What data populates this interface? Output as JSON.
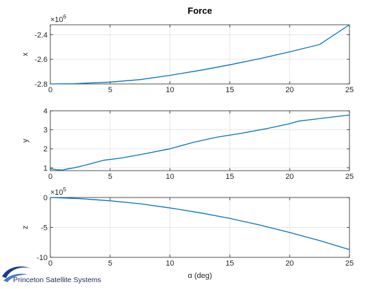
{
  "colors": {
    "series": "#0072bd",
    "grid": "#e6e6e6",
    "axis": "#262626",
    "logo": "#1a3a8a"
  },
  "logo": {
    "text": "Princeton Satellite Systems",
    "icon": "pss-swoosh-icon"
  },
  "chart_data": [
    {
      "type": "line",
      "title": "Force",
      "ylabel": "x",
      "xlabel": "",
      "exponent_label": "×10^6",
      "exponent": 6,
      "xlim": [
        0,
        25
      ],
      "ylim": [
        -2.8,
        -2.32
      ],
      "grid": true,
      "xticks": [
        "0",
        "5",
        "10",
        "15",
        "20",
        "25"
      ],
      "yticks": [
        "-2.8",
        "-2.6",
        "-2.4"
      ],
      "series": [
        {
          "x": [
            0,
            2,
            5,
            7.5,
            10,
            12.5,
            15,
            17.5,
            20,
            22.5,
            25
          ],
          "y": [
            -2.8,
            -2.798,
            -2.785,
            -2.765,
            -2.73,
            -2.69,
            -2.645,
            -2.595,
            -2.54,
            -2.48,
            -2.32
          ]
        }
      ]
    },
    {
      "type": "line",
      "title": "",
      "ylabel": "y",
      "xlabel": "",
      "xlim": [
        0,
        25
      ],
      "ylim": [
        0.85,
        4
      ],
      "grid": true,
      "xticks": [
        "0",
        "5",
        "10",
        "15",
        "20",
        "25"
      ],
      "yticks": [
        "1",
        "2",
        "3",
        "4"
      ],
      "series": [
        {
          "x": [
            0,
            0.5,
            1,
            1.5,
            2,
            3,
            4,
            4.5,
            6,
            8,
            10,
            12,
            14,
            16,
            18,
            20,
            20.7,
            22,
            25
          ],
          "y": [
            0.95,
            0.9,
            0.88,
            0.95,
            1.0,
            1.15,
            1.32,
            1.4,
            1.52,
            1.75,
            2.0,
            2.35,
            2.62,
            2.82,
            3.05,
            3.32,
            3.45,
            3.55,
            3.78
          ]
        }
      ]
    },
    {
      "type": "line",
      "title": "",
      "ylabel": "z",
      "xlabel": "α (deg)",
      "exponent_label": "×10^5",
      "exponent": 5,
      "xlim": [
        0,
        25
      ],
      "ylim": [
        -10,
        0
      ],
      "grid": true,
      "xticks": [
        "0",
        "5",
        "10",
        "15",
        "20",
        "25"
      ],
      "yticks": [
        "-10",
        "-5",
        "0"
      ],
      "series": [
        {
          "x": [
            0,
            2.5,
            5,
            7.5,
            10,
            12.5,
            15,
            17.5,
            20,
            22.5,
            25
          ],
          "y": [
            0,
            -0.2,
            -0.55,
            -1.05,
            -1.75,
            -2.55,
            -3.5,
            -4.6,
            -5.85,
            -7.2,
            -8.7
          ]
        }
      ]
    }
  ]
}
